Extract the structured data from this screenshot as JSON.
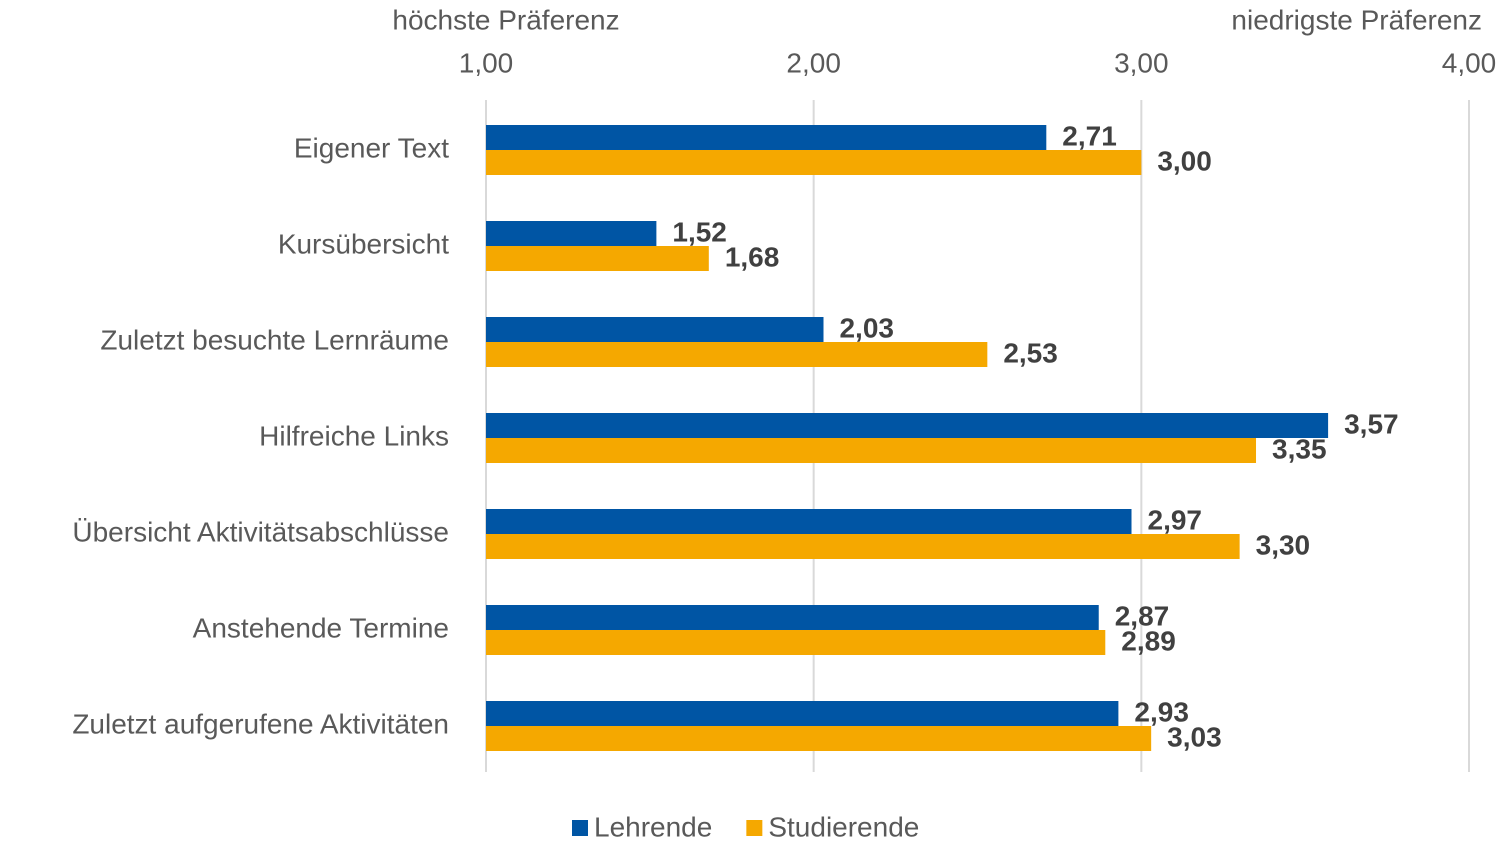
{
  "chart_data": {
    "type": "bar",
    "orientation": "horizontal",
    "annotations": [
      "höchste Präferenz",
      "niedrigste Präferenz"
    ],
    "categories": [
      "Eigener Text",
      "Kursübersicht",
      "Zuletzt besuchte Lernräume",
      "Hilfreiche Links",
      "Übersicht Aktivitätsabschlüsse",
      "Anstehende Termine",
      "Zuletzt aufgerufene Aktivitäten"
    ],
    "series": [
      {
        "name": "Lehrende",
        "color": "#0055a4",
        "values": [
          2.71,
          1.52,
          2.03,
          3.57,
          2.97,
          2.87,
          2.93
        ],
        "value_labels": [
          "2,71",
          "1,52",
          "2,03",
          "3,57",
          "2,97",
          "2,87",
          "2,93"
        ]
      },
      {
        "name": "Studierende",
        "color": "#f5a800",
        "values": [
          3.0,
          1.68,
          2.53,
          3.35,
          3.3,
          2.89,
          3.03
        ],
        "value_labels": [
          "3,00",
          "1,68",
          "2,53",
          "3,35",
          "3,30",
          "2,89",
          "3,03"
        ]
      }
    ],
    "xlim": [
      1,
      4
    ],
    "xticks": [
      {
        "value": 1,
        "label": "1,00"
      },
      {
        "value": 2,
        "label": "2,00"
      },
      {
        "value": 3,
        "label": "3,00"
      },
      {
        "value": 4,
        "label": "4,00"
      }
    ],
    "grid": true,
    "legend": "bottom"
  }
}
